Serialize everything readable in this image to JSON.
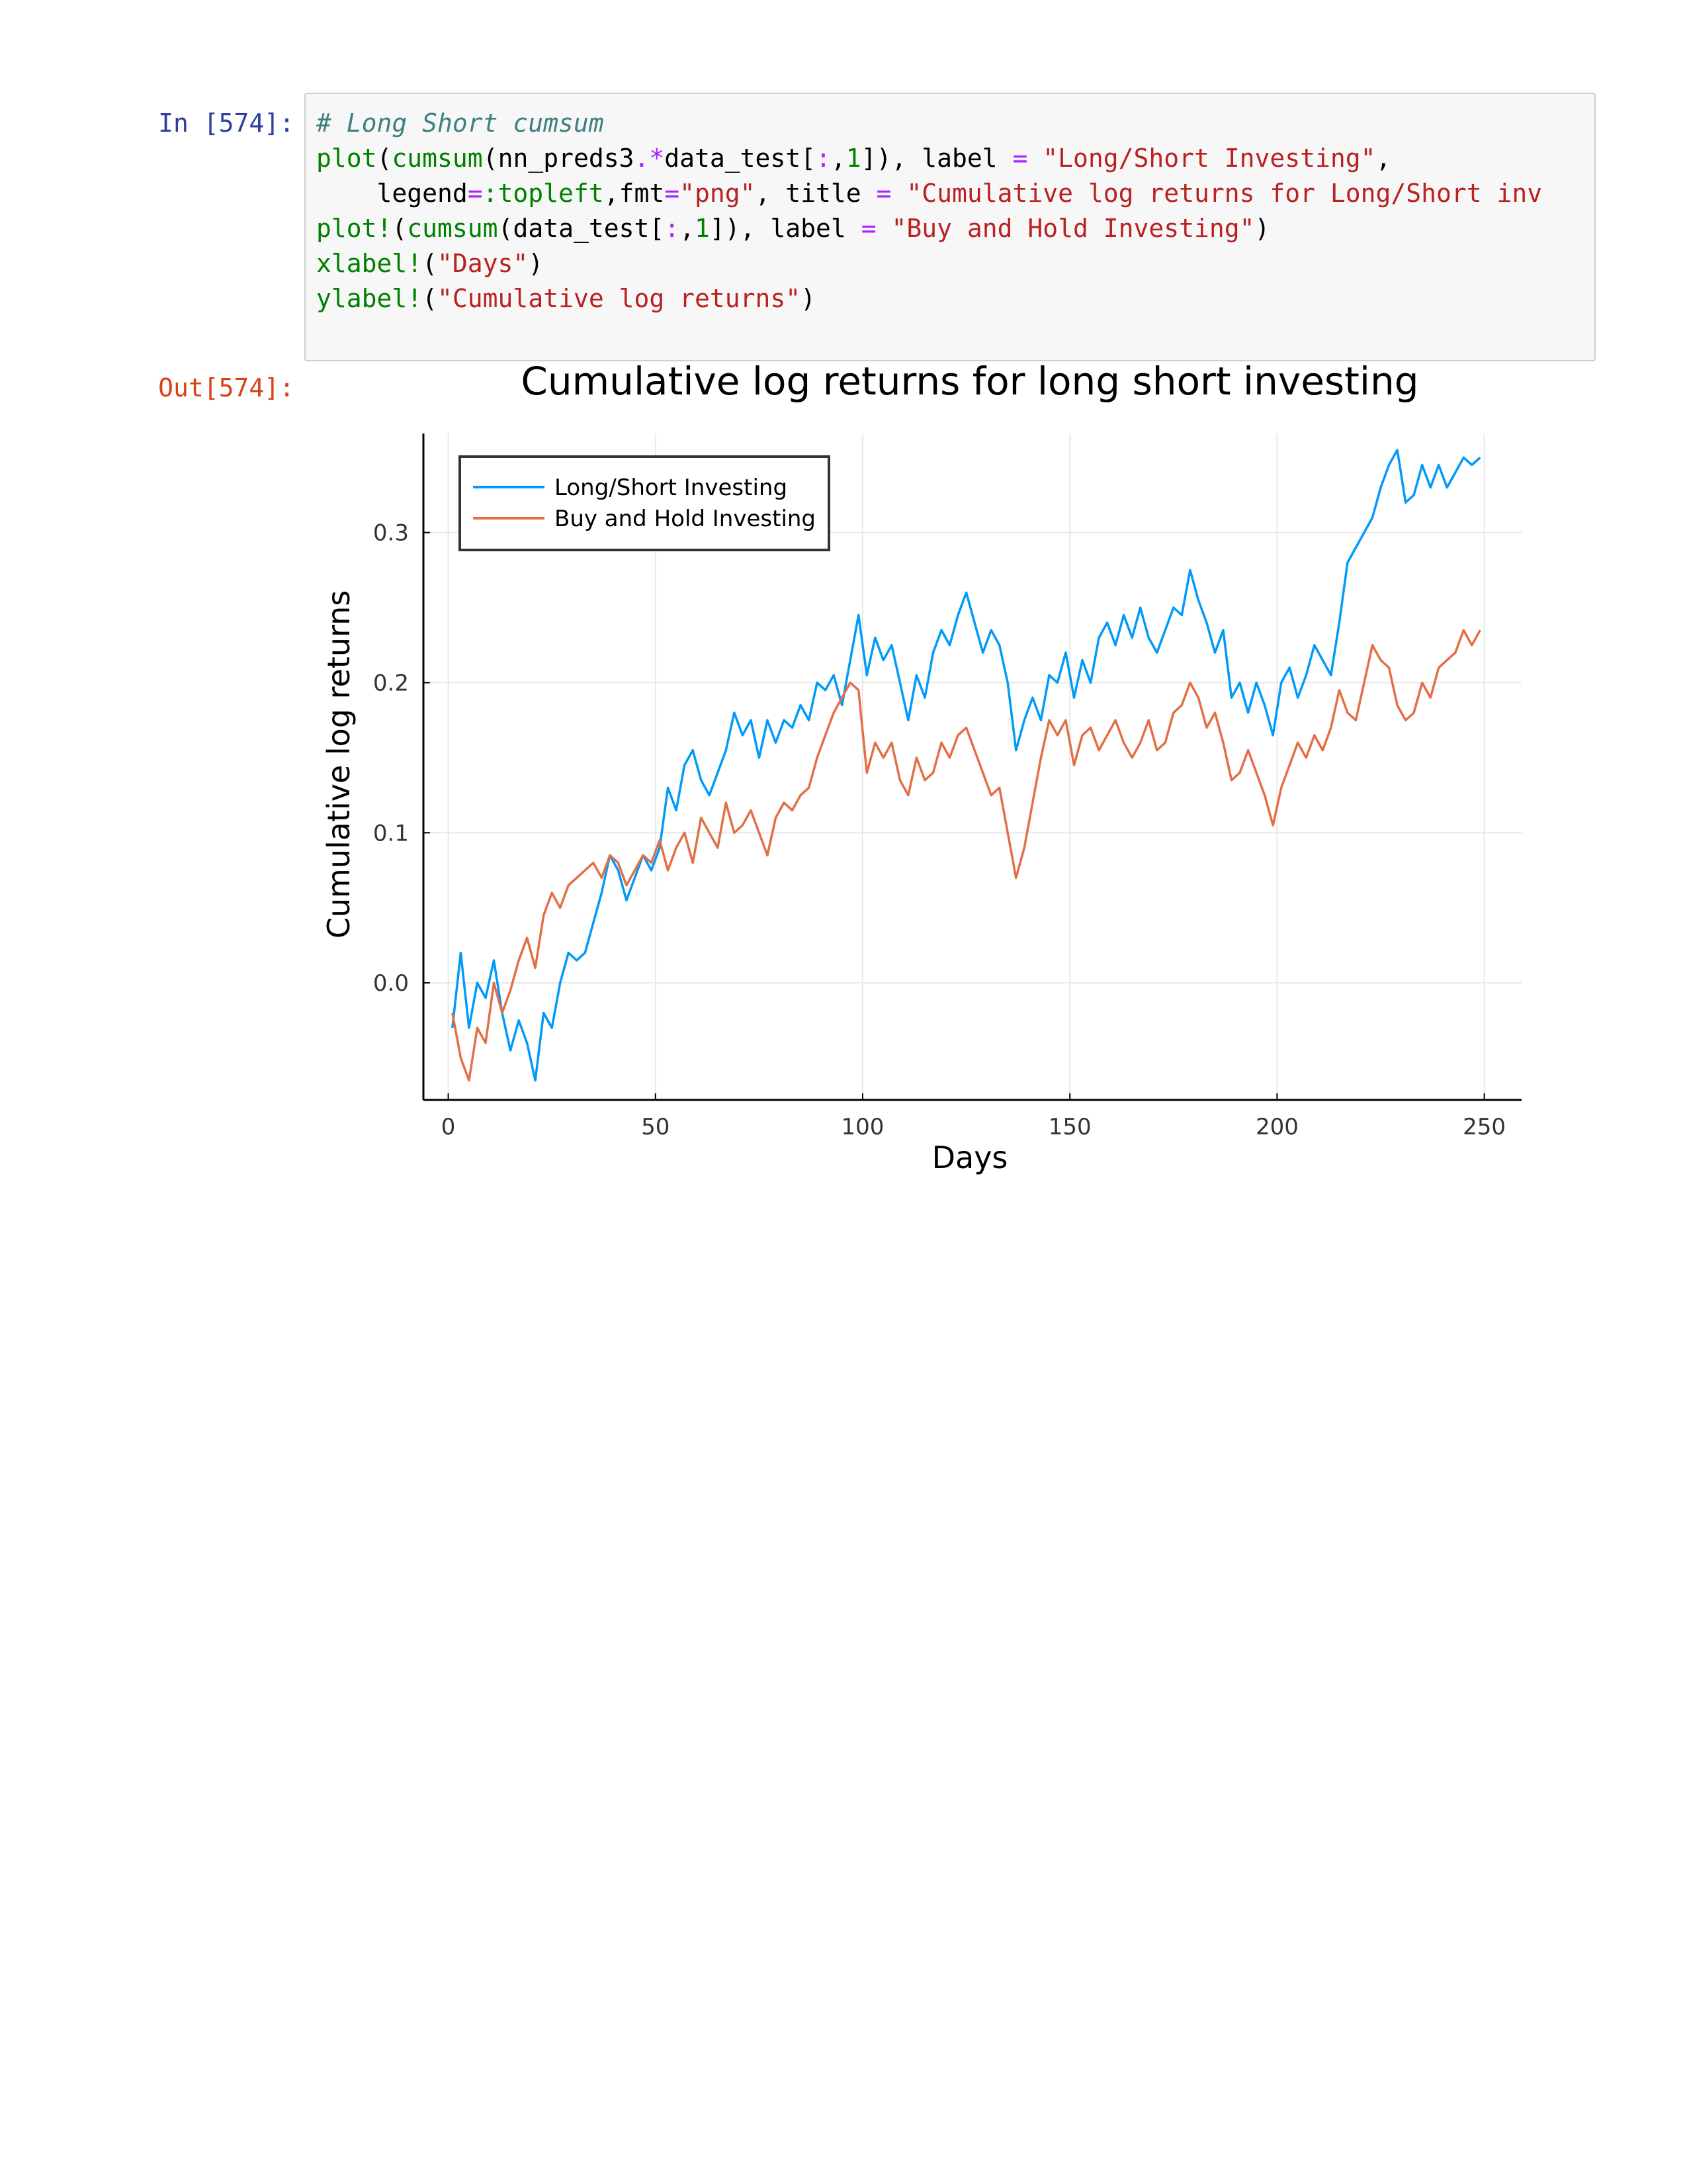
{
  "cell": {
    "in_prompt": "In [574]:",
    "out_prompt": "Out[574]:",
    "code_lines": [
      [
        {
          "t": "cm",
          "v": "# Long Short cumsum"
        }
      ],
      [
        {
          "t": "fn",
          "v": "plot"
        },
        {
          "t": "",
          "v": "("
        },
        {
          "t": "fn",
          "v": "cumsum"
        },
        {
          "t": "",
          "v": "(nn_preds3"
        },
        {
          "t": "op",
          "v": ".*"
        },
        {
          "t": "",
          "v": "data_test["
        },
        {
          "t": "op",
          "v": ":"
        },
        {
          "t": "",
          "v": ","
        },
        {
          "t": "nu",
          "v": "1"
        },
        {
          "t": "",
          "v": "]), label "
        },
        {
          "t": "op",
          "v": "="
        },
        {
          "t": "",
          "v": " "
        },
        {
          "t": "st",
          "v": "\"Long/Short Investing\""
        },
        {
          "t": "",
          "v": ","
        }
      ],
      [
        {
          "t": "",
          "v": "    legend"
        },
        {
          "t": "op",
          "v": "="
        },
        {
          "t": "fn",
          "v": ":topleft"
        },
        {
          "t": "",
          "v": ",fmt"
        },
        {
          "t": "op",
          "v": "="
        },
        {
          "t": "st",
          "v": "\"png\""
        },
        {
          "t": "",
          "v": ", title "
        },
        {
          "t": "op",
          "v": "="
        },
        {
          "t": "",
          "v": " "
        },
        {
          "t": "st",
          "v": "\"Cumulative log returns for Long/Short inv"
        }
      ],
      [
        {
          "t": "fn",
          "v": "plot!"
        },
        {
          "t": "",
          "v": "("
        },
        {
          "t": "fn",
          "v": "cumsum"
        },
        {
          "t": "",
          "v": "(data_test["
        },
        {
          "t": "op",
          "v": ":"
        },
        {
          "t": "",
          "v": ","
        },
        {
          "t": "nu",
          "v": "1"
        },
        {
          "t": "",
          "v": "]), label "
        },
        {
          "t": "op",
          "v": "="
        },
        {
          "t": "",
          "v": " "
        },
        {
          "t": "st",
          "v": "\"Buy and Hold Investing\""
        },
        {
          "t": "",
          "v": ")"
        }
      ],
      [
        {
          "t": "fn",
          "v": "xlabel!"
        },
        {
          "t": "",
          "v": "("
        },
        {
          "t": "st",
          "v": "\"Days\""
        },
        {
          "t": "",
          "v": ")"
        }
      ],
      [
        {
          "t": "fn",
          "v": "ylabel!"
        },
        {
          "t": "",
          "v": "("
        },
        {
          "t": "st",
          "v": "\"Cumulative log returns\""
        },
        {
          "t": "",
          "v": ")"
        }
      ]
    ]
  },
  "chart_data": {
    "type": "line",
    "title": "Cumulative log returns for long short investing",
    "xlabel": "Days",
    "ylabel": "Cumulative log returns",
    "xlim": [
      -6,
      259
    ],
    "ylim": [
      -0.078,
      0.366
    ],
    "xticks": [
      0,
      50,
      100,
      150,
      200,
      250
    ],
    "yticks": [
      0.0,
      0.1,
      0.2,
      0.3
    ],
    "ytick_labels": [
      "0.0",
      "0.1",
      "0.2",
      "0.3"
    ],
    "grid": true,
    "legend_position": "top-left",
    "series": [
      {
        "name": "Long/Short Investing",
        "color": "#009af9",
        "points": [
          [
            1,
            -0.03
          ],
          [
            3,
            0.02
          ],
          [
            5,
            -0.03
          ],
          [
            7,
            0.0
          ],
          [
            9,
            -0.01
          ],
          [
            11,
            0.015
          ],
          [
            13,
            -0.02
          ],
          [
            15,
            -0.045
          ],
          [
            17,
            -0.025
          ],
          [
            19,
            -0.04
          ],
          [
            21,
            -0.065
          ],
          [
            23,
            -0.02
          ],
          [
            25,
            -0.03
          ],
          [
            27,
            0.0
          ],
          [
            29,
            0.02
          ],
          [
            31,
            0.015
          ],
          [
            33,
            0.02
          ],
          [
            35,
            0.04
          ],
          [
            37,
            0.06
          ],
          [
            39,
            0.085
          ],
          [
            41,
            0.075
          ],
          [
            43,
            0.055
          ],
          [
            45,
            0.07
          ],
          [
            47,
            0.085
          ],
          [
            49,
            0.075
          ],
          [
            51,
            0.09
          ],
          [
            53,
            0.13
          ],
          [
            55,
            0.115
          ],
          [
            57,
            0.145
          ],
          [
            59,
            0.155
          ],
          [
            61,
            0.135
          ],
          [
            63,
            0.125
          ],
          [
            65,
            0.14
          ],
          [
            67,
            0.155
          ],
          [
            69,
            0.18
          ],
          [
            71,
            0.165
          ],
          [
            73,
            0.175
          ],
          [
            75,
            0.15
          ],
          [
            77,
            0.175
          ],
          [
            79,
            0.16
          ],
          [
            81,
            0.175
          ],
          [
            83,
            0.17
          ],
          [
            85,
            0.185
          ],
          [
            87,
            0.175
          ],
          [
            89,
            0.2
          ],
          [
            91,
            0.195
          ],
          [
            93,
            0.205
          ],
          [
            95,
            0.185
          ],
          [
            97,
            0.215
          ],
          [
            99,
            0.245
          ],
          [
            101,
            0.205
          ],
          [
            103,
            0.23
          ],
          [
            105,
            0.215
          ],
          [
            107,
            0.225
          ],
          [
            109,
            0.2
          ],
          [
            111,
            0.175
          ],
          [
            113,
            0.205
          ],
          [
            115,
            0.19
          ],
          [
            117,
            0.22
          ],
          [
            119,
            0.235
          ],
          [
            121,
            0.225
          ],
          [
            123,
            0.245
          ],
          [
            125,
            0.26
          ],
          [
            127,
            0.24
          ],
          [
            129,
            0.22
          ],
          [
            131,
            0.235
          ],
          [
            133,
            0.225
          ],
          [
            135,
            0.2
          ],
          [
            137,
            0.155
          ],
          [
            139,
            0.175
          ],
          [
            141,
            0.19
          ],
          [
            143,
            0.175
          ],
          [
            145,
            0.205
          ],
          [
            147,
            0.2
          ],
          [
            149,
            0.22
          ],
          [
            151,
            0.19
          ],
          [
            153,
            0.215
          ],
          [
            155,
            0.2
          ],
          [
            157,
            0.23
          ],
          [
            159,
            0.24
          ],
          [
            161,
            0.225
          ],
          [
            163,
            0.245
          ],
          [
            165,
            0.23
          ],
          [
            167,
            0.25
          ],
          [
            169,
            0.23
          ],
          [
            171,
            0.22
          ],
          [
            173,
            0.235
          ],
          [
            175,
            0.25
          ],
          [
            177,
            0.245
          ],
          [
            179,
            0.275
          ],
          [
            181,
            0.255
          ],
          [
            183,
            0.24
          ],
          [
            185,
            0.22
          ],
          [
            187,
            0.235
          ],
          [
            189,
            0.19
          ],
          [
            191,
            0.2
          ],
          [
            193,
            0.18
          ],
          [
            195,
            0.2
          ],
          [
            197,
            0.185
          ],
          [
            199,
            0.165
          ],
          [
            201,
            0.2
          ],
          [
            203,
            0.21
          ],
          [
            205,
            0.19
          ],
          [
            207,
            0.205
          ],
          [
            209,
            0.225
          ],
          [
            211,
            0.215
          ],
          [
            213,
            0.205
          ],
          [
            215,
            0.24
          ],
          [
            217,
            0.28
          ],
          [
            219,
            0.29
          ],
          [
            221,
            0.3
          ],
          [
            223,
            0.31
          ],
          [
            225,
            0.33
          ],
          [
            227,
            0.345
          ],
          [
            229,
            0.355
          ],
          [
            231,
            0.32
          ],
          [
            233,
            0.325
          ],
          [
            235,
            0.345
          ],
          [
            237,
            0.33
          ],
          [
            239,
            0.345
          ],
          [
            241,
            0.33
          ],
          [
            243,
            0.34
          ],
          [
            245,
            0.35
          ],
          [
            247,
            0.345
          ],
          [
            249,
            0.35
          ]
        ]
      },
      {
        "name": "Buy and Hold Investing",
        "color": "#e26f46",
        "points": [
          [
            1,
            -0.02
          ],
          [
            3,
            -0.05
          ],
          [
            5,
            -0.065
          ],
          [
            7,
            -0.03
          ],
          [
            9,
            -0.04
          ],
          [
            11,
            0.0
          ],
          [
            13,
            -0.02
          ],
          [
            15,
            -0.005
          ],
          [
            17,
            0.015
          ],
          [
            19,
            0.03
          ],
          [
            21,
            0.01
          ],
          [
            23,
            0.045
          ],
          [
            25,
            0.06
          ],
          [
            27,
            0.05
          ],
          [
            29,
            0.065
          ],
          [
            31,
            0.07
          ],
          [
            33,
            0.075
          ],
          [
            35,
            0.08
          ],
          [
            37,
            0.07
          ],
          [
            39,
            0.085
          ],
          [
            41,
            0.08
          ],
          [
            43,
            0.065
          ],
          [
            45,
            0.075
          ],
          [
            47,
            0.085
          ],
          [
            49,
            0.08
          ],
          [
            51,
            0.095
          ],
          [
            53,
            0.075
          ],
          [
            55,
            0.09
          ],
          [
            57,
            0.1
          ],
          [
            59,
            0.08
          ],
          [
            61,
            0.11
          ],
          [
            63,
            0.1
          ],
          [
            65,
            0.09
          ],
          [
            67,
            0.12
          ],
          [
            69,
            0.1
          ],
          [
            71,
            0.105
          ],
          [
            73,
            0.115
          ],
          [
            75,
            0.1
          ],
          [
            77,
            0.085
          ],
          [
            79,
            0.11
          ],
          [
            81,
            0.12
          ],
          [
            83,
            0.115
          ],
          [
            85,
            0.125
          ],
          [
            87,
            0.13
          ],
          [
            89,
            0.15
          ],
          [
            91,
            0.165
          ],
          [
            93,
            0.18
          ],
          [
            95,
            0.19
          ],
          [
            97,
            0.2
          ],
          [
            99,
            0.195
          ],
          [
            101,
            0.14
          ],
          [
            103,
            0.16
          ],
          [
            105,
            0.15
          ],
          [
            107,
            0.16
          ],
          [
            109,
            0.135
          ],
          [
            111,
            0.125
          ],
          [
            113,
            0.15
          ],
          [
            115,
            0.135
          ],
          [
            117,
            0.14
          ],
          [
            119,
            0.16
          ],
          [
            121,
            0.15
          ],
          [
            123,
            0.165
          ],
          [
            125,
            0.17
          ],
          [
            127,
            0.155
          ],
          [
            129,
            0.14
          ],
          [
            131,
            0.125
          ],
          [
            133,
            0.13
          ],
          [
            135,
            0.1
          ],
          [
            137,
            0.07
          ],
          [
            139,
            0.09
          ],
          [
            141,
            0.12
          ],
          [
            143,
            0.15
          ],
          [
            145,
            0.175
          ],
          [
            147,
            0.165
          ],
          [
            149,
            0.175
          ],
          [
            151,
            0.145
          ],
          [
            153,
            0.165
          ],
          [
            155,
            0.17
          ],
          [
            157,
            0.155
          ],
          [
            159,
            0.165
          ],
          [
            161,
            0.175
          ],
          [
            163,
            0.16
          ],
          [
            165,
            0.15
          ],
          [
            167,
            0.16
          ],
          [
            169,
            0.175
          ],
          [
            171,
            0.155
          ],
          [
            173,
            0.16
          ],
          [
            175,
            0.18
          ],
          [
            177,
            0.185
          ],
          [
            179,
            0.2
          ],
          [
            181,
            0.19
          ],
          [
            183,
            0.17
          ],
          [
            185,
            0.18
          ],
          [
            187,
            0.16
          ],
          [
            189,
            0.135
          ],
          [
            191,
            0.14
          ],
          [
            193,
            0.155
          ],
          [
            195,
            0.14
          ],
          [
            197,
            0.125
          ],
          [
            199,
            0.105
          ],
          [
            201,
            0.13
          ],
          [
            203,
            0.145
          ],
          [
            205,
            0.16
          ],
          [
            207,
            0.15
          ],
          [
            209,
            0.165
          ],
          [
            211,
            0.155
          ],
          [
            213,
            0.17
          ],
          [
            215,
            0.195
          ],
          [
            217,
            0.18
          ],
          [
            219,
            0.175
          ],
          [
            221,
            0.2
          ],
          [
            223,
            0.225
          ],
          [
            225,
            0.215
          ],
          [
            227,
            0.21
          ],
          [
            229,
            0.185
          ],
          [
            231,
            0.175
          ],
          [
            233,
            0.18
          ],
          [
            235,
            0.2
          ],
          [
            237,
            0.19
          ],
          [
            239,
            0.21
          ],
          [
            241,
            0.215
          ],
          [
            243,
            0.22
          ],
          [
            245,
            0.235
          ],
          [
            247,
            0.225
          ],
          [
            249,
            0.235
          ]
        ]
      }
    ]
  }
}
